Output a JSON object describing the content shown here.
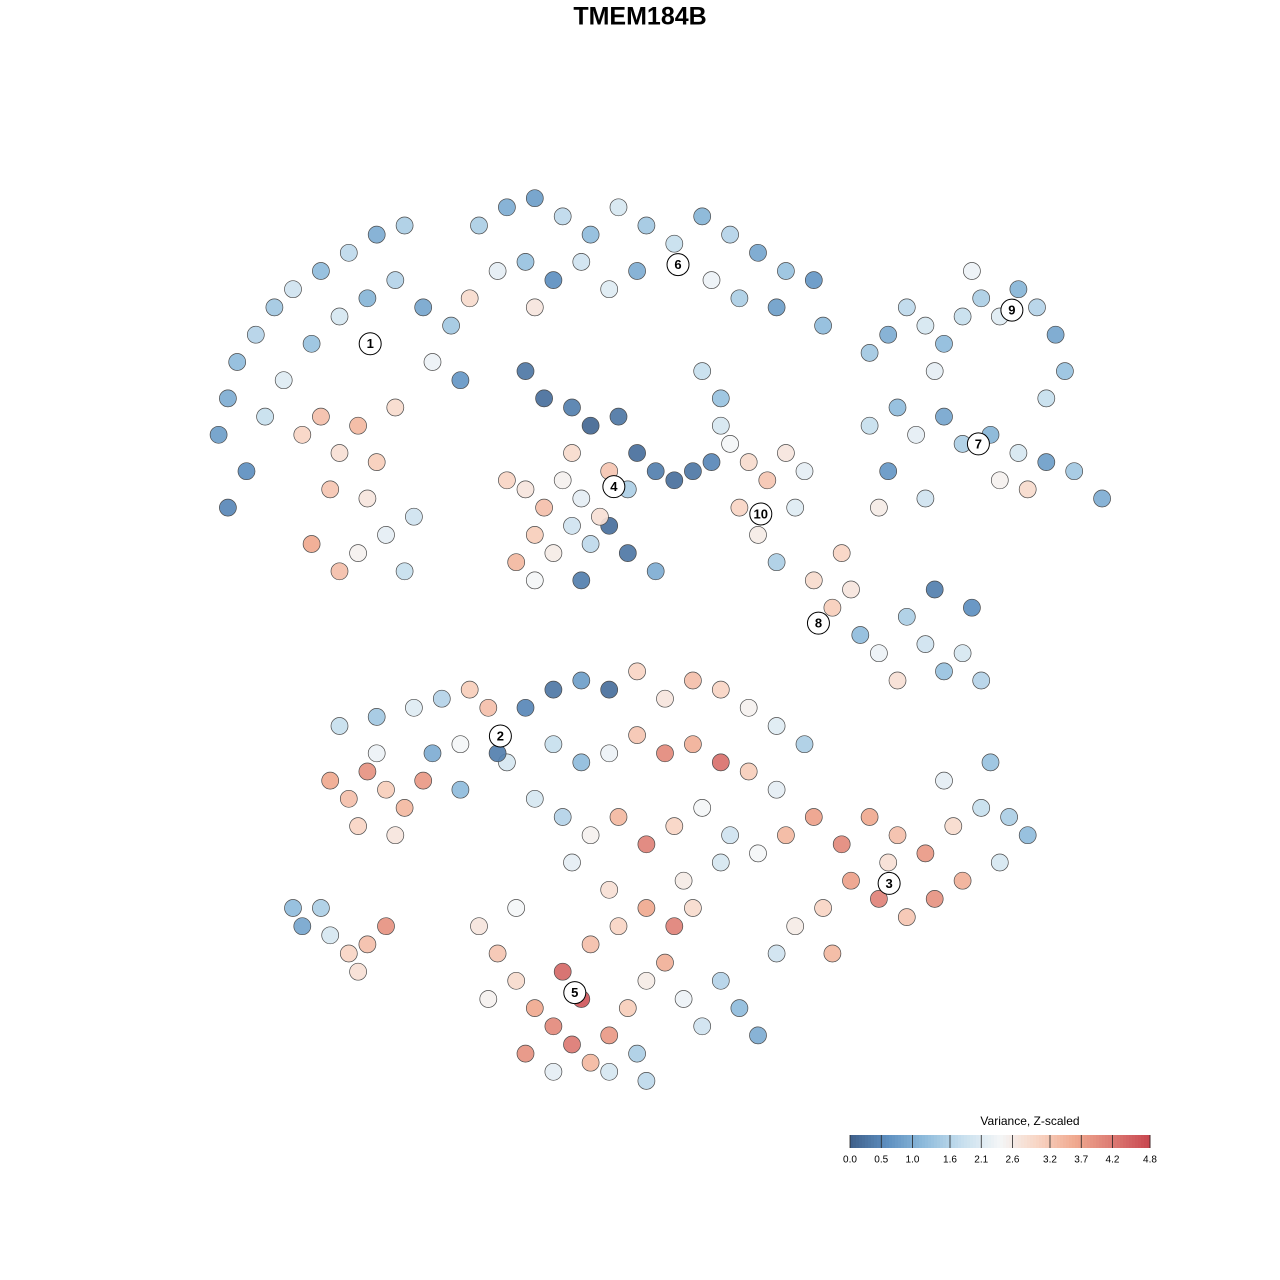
{
  "chart_data": {
    "type": "scatter",
    "title": "TMEM184B",
    "xlim": [
      0,
      100
    ],
    "ylim": [
      0,
      100
    ],
    "x": [
      2,
      3,
      4,
      6,
      8,
      10,
      13,
      16,
      19,
      22,
      5,
      7,
      9,
      12,
      15,
      18,
      21,
      24,
      27,
      25,
      28,
      3,
      11,
      13,
      15,
      17,
      19,
      21,
      14,
      18,
      12,
      15,
      20,
      23,
      17,
      22,
      30,
      33,
      36,
      39,
      42,
      45,
      48,
      51,
      54,
      57,
      60,
      63,
      66,
      32,
      35,
      38,
      41,
      44,
      47,
      55,
      58,
      62,
      67,
      36,
      29,
      35,
      37,
      40,
      42,
      45,
      47,
      49,
      51,
      53,
      55,
      44,
      46,
      41,
      49,
      54,
      56,
      33,
      35,
      37,
      39,
      41,
      43,
      36,
      38,
      40,
      34,
      36,
      42,
      44,
      40,
      46,
      57,
      59,
      61,
      63,
      65,
      58,
      60,
      62,
      64,
      56,
      72,
      74,
      76,
      78,
      80,
      82,
      84,
      86,
      88,
      90,
      92,
      93,
      91,
      79,
      83,
      72,
      75,
      77,
      80,
      82,
      85,
      88,
      91,
      94,
      97,
      89,
      86,
      74,
      78,
      73,
      66,
      68,
      70,
      71,
      73,
      76,
      78,
      80,
      82,
      84,
      75,
      79,
      83,
      69,
      14,
      16,
      18,
      20,
      22,
      24,
      17,
      21,
      15,
      19,
      23,
      26,
      29,
      31,
      28,
      25,
      33,
      19,
      10,
      11,
      14,
      16,
      18,
      20,
      17,
      13,
      35,
      38,
      41,
      44,
      47,
      50,
      53,
      56,
      59,
      62,
      65,
      38,
      41,
      44,
      47,
      50,
      53,
      56,
      59,
      62,
      36,
      39,
      42,
      45,
      48,
      51,
      54,
      57,
      40,
      44,
      48,
      52,
      56,
      32,
      28,
      60,
      63,
      66,
      69,
      72,
      75,
      78,
      81,
      84,
      87,
      89,
      86,
      82,
      79,
      76,
      73,
      70,
      67,
      64,
      62,
      68,
      74,
      85,
      80,
      30,
      32,
      34,
      36,
      38,
      40,
      42,
      44,
      46,
      48,
      50,
      52,
      54,
      56,
      58,
      60,
      35,
      38,
      44,
      47,
      42,
      45,
      39,
      41,
      51,
      53,
      34,
      31,
      48
    ],
    "y": [
      72,
      76,
      80,
      83,
      86,
      88,
      90,
      92,
      94,
      95,
      68,
      74,
      78,
      82,
      85,
      87,
      89,
      86,
      84,
      80,
      78,
      64,
      72,
      74,
      70,
      73,
      69,
      75,
      66,
      65,
      60,
      57,
      61,
      63,
      59,
      57,
      95,
      97,
      98,
      96,
      94,
      97,
      95,
      93,
      96,
      94,
      92,
      90,
      89,
      90,
      91,
      89,
      91,
      88,
      90,
      89,
      87,
      86,
      84,
      86,
      87,
      79,
      76,
      75,
      73,
      74,
      70,
      68,
      67,
      68,
      69,
      62,
      59,
      56,
      57,
      79,
      76,
      67,
      66,
      64,
      67,
      65,
      63,
      61,
      59,
      62,
      58,
      56,
      60,
      68,
      70,
      66,
      71,
      69,
      67,
      70,
      68,
      64,
      61,
      58,
      64,
      73,
      81,
      83,
      86,
      84,
      82,
      85,
      87,
      85,
      88,
      86,
      83,
      79,
      76,
      79,
      90,
      73,
      75,
      72,
      74,
      71,
      72,
      70,
      69,
      68,
      65,
      66,
      67,
      68,
      65,
      64,
      56,
      53,
      55,
      50,
      48,
      52,
      49,
      46,
      48,
      45,
      45,
      55,
      53,
      59,
      34,
      32,
      35,
      33,
      31,
      34,
      29,
      28,
      40,
      41,
      42,
      43,
      44,
      42,
      38,
      37,
      36,
      37,
      20,
      18,
      17,
      15,
      16,
      18,
      13,
      20,
      42,
      44,
      45,
      44,
      46,
      43,
      45,
      44,
      42,
      40,
      38,
      38,
      36,
      37,
      39,
      37,
      38,
      36,
      35,
      33,
      32,
      30,
      28,
      30,
      27,
      29,
      31,
      28,
      25,
      22,
      20,
      23,
      25,
      37,
      33,
      26,
      28,
      30,
      27,
      30,
      28,
      26,
      29,
      31,
      30,
      28,
      25,
      23,
      21,
      19,
      21,
      23,
      20,
      18,
      15,
      15,
      25,
      36,
      34,
      18,
      15,
      12,
      9,
      7,
      5,
      3,
      6,
      9,
      12,
      14,
      10,
      7,
      12,
      9,
      6,
      4,
      2,
      2,
      4,
      16,
      18,
      13,
      10,
      18,
      20,
      20,
      10,
      1
    ],
    "values": [
      0.8,
      1.0,
      1.2,
      1.6,
      1.4,
      1.9,
      1.2,
      1.7,
      1.0,
      1.5,
      0.6,
      1.8,
      2.1,
      1.3,
      2.0,
      1.1,
      1.6,
      0.9,
      1.4,
      2.3,
      0.7,
      0.5,
      3.0,
      3.3,
      2.8,
      3.4,
      3.1,
      2.9,
      3.2,
      2.7,
      3.6,
      3.3,
      2.2,
      1.9,
      2.5,
      1.8,
      1.5,
      1.0,
      0.8,
      1.7,
      1.2,
      2.0,
      1.4,
      1.8,
      1.1,
      1.6,
      0.9,
      1.3,
      0.7,
      2.2,
      1.3,
      0.6,
      1.9,
      2.1,
      1.0,
      2.3,
      1.5,
      0.8,
      1.2,
      2.7,
      2.9,
      0.3,
      0.2,
      0.4,
      0.1,
      0.3,
      0.2,
      0.4,
      0.2,
      0.3,
      0.5,
      0.2,
      0.3,
      0.4,
      1.0,
      1.8,
      1.3,
      3.0,
      2.7,
      3.3,
      2.5,
      2.2,
      2.8,
      3.1,
      2.6,
      1.9,
      3.4,
      2.4,
      1.7,
      3.2,
      2.9,
      1.5,
      2.4,
      2.9,
      3.2,
      2.7,
      2.2,
      3.0,
      2.6,
      1.5,
      2.1,
      2.0,
      1.4,
      1.0,
      1.7,
      2.0,
      1.2,
      1.8,
      1.5,
      2.1,
      1.1,
      1.6,
      0.9,
      1.3,
      1.8,
      2.2,
      2.3,
      1.8,
      1.2,
      2.2,
      0.9,
      1.5,
      1.1,
      2.0,
      0.8,
      1.4,
      1.0,
      2.9,
      2.5,
      0.7,
      1.9,
      2.6,
      2.9,
      3.1,
      2.7,
      1.2,
      2.3,
      1.5,
      1.9,
      1.3,
      2.0,
      1.6,
      2.8,
      0.4,
      0.6,
      3.0,
      3.6,
      3.3,
      3.9,
      3.1,
      3.4,
      3.8,
      3.0,
      2.7,
      1.8,
      1.4,
      2.1,
      1.6,
      3.1,
      3.3,
      2.4,
      1.0,
      2.0,
      2.3,
      1.2,
      0.9,
      2.0,
      3.0,
      3.3,
      3.9,
      2.8,
      1.5,
      0.5,
      0.3,
      0.8,
      0.2,
      3.0,
      2.7,
      3.3,
      3.0,
      2.5,
      2.1,
      1.5,
      1.8,
      1.2,
      2.3,
      3.2,
      4.0,
      3.5,
      4.3,
      3.1,
      2.2,
      2.0,
      1.6,
      2.5,
      3.4,
      4.1,
      3.0,
      2.4,
      1.9,
      2.2,
      2.8,
      3.6,
      2.6,
      2.0,
      0.4,
      1.2,
      2.4,
      3.4,
      3.7,
      4.0,
      3.6,
      3.3,
      3.8,
      2.9,
      1.8,
      1.5,
      1.2,
      2.0,
      3.5,
      3.9,
      3.2,
      4.1,
      3.7,
      3.0,
      2.6,
      1.9,
      3.4,
      2.8,
      1.3,
      2.2,
      2.7,
      3.2,
      2.9,
      3.6,
      4.0,
      4.2,
      3.4,
      3.8,
      3.1,
      2.6,
      3.5,
      2.3,
      1.9,
      1.6,
      1.2,
      1.0,
      3.9,
      2.2,
      2.0,
      1.5,
      3.3,
      3.0,
      4.4,
      4.6,
      4.1,
      2.9,
      2.4,
      2.5,
      1.7
    ],
    "annotations": [
      {
        "text": "1",
        "x": 18.3,
        "y": 82.0
      },
      {
        "text": "2",
        "x": 32.3,
        "y": 38.9
      },
      {
        "text": "3",
        "x": 74.1,
        "y": 22.7
      },
      {
        "text": "4",
        "x": 44.5,
        "y": 66.3
      },
      {
        "text": "5",
        "x": 40.3,
        "y": 10.7
      },
      {
        "text": "6",
        "x": 51.4,
        "y": 90.7
      },
      {
        "text": "7",
        "x": 83.7,
        "y": 71.0
      },
      {
        "text": "8",
        "x": 66.5,
        "y": 51.3
      },
      {
        "text": "9",
        "x": 87.3,
        "y": 85.7
      },
      {
        "text": "10",
        "x": 60.3,
        "y": 63.3
      }
    ],
    "colorbar": {
      "title": "Variance, Z-scaled",
      "lim": [
        0,
        4.8
      ],
      "ticks": [
        {
          "value": 0,
          "label": "0.0"
        },
        0.5,
        {
          "value": 1,
          "label": "1.0"
        },
        1.6,
        2.1,
        2.6,
        3.2,
        3.7,
        4.2,
        4.8
      ],
      "colormap": [
        "#3e5f8a",
        "#5d8fc0",
        "#8fbcdc",
        "#c7dfee",
        "#f4f6f7",
        "#f8d5c4",
        "#f0a98f",
        "#dc7a73",
        "#c8464f"
      ]
    }
  }
}
